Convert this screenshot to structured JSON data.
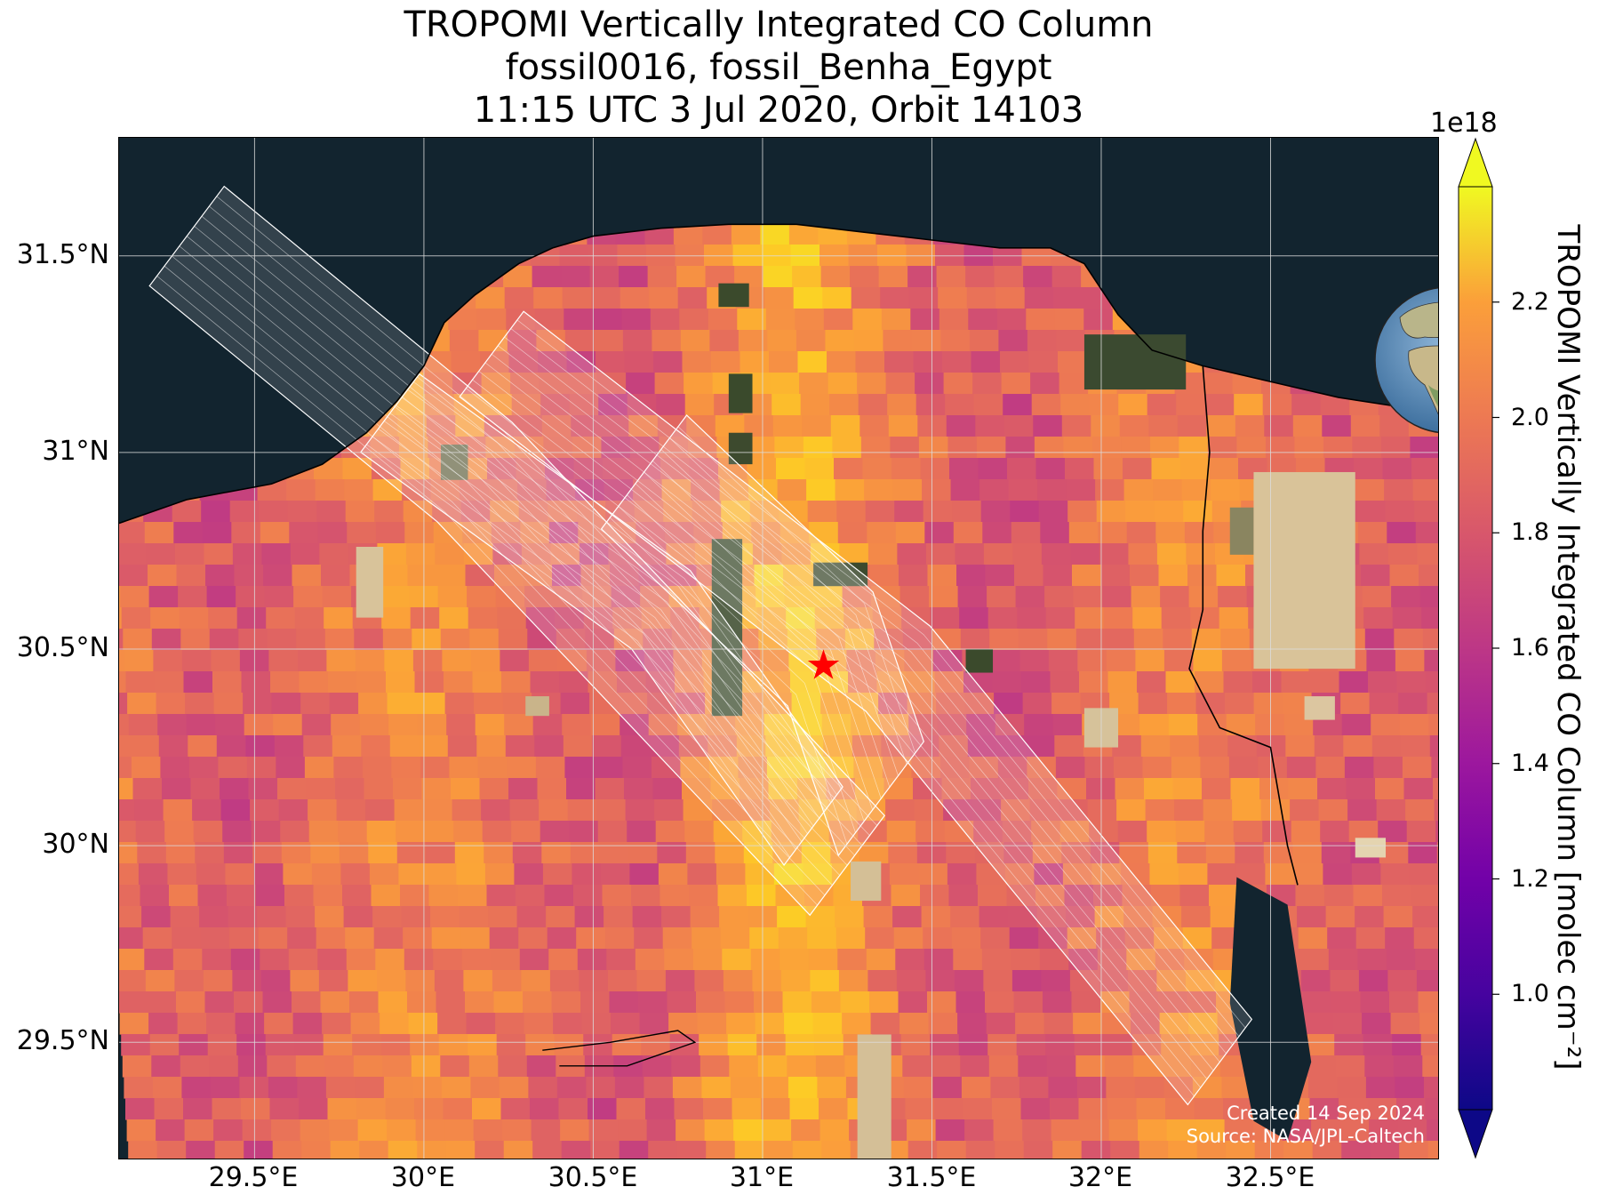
{
  "title": {
    "line1": "TROPOMI Vertically Integrated CO Column",
    "line2": "fossil0016, fossil_Benha_Egypt",
    "line3": "11:15 UTC 3 Jul 2020, Orbit 14103"
  },
  "map": {
    "lon_range": [
      29.1,
      33.0
    ],
    "lat_range": [
      29.2,
      31.8
    ],
    "lat_ticks": [
      {
        "value": 31.5,
        "label": "31.5°N"
      },
      {
        "value": 31.0,
        "label": "31°N"
      },
      {
        "value": 30.5,
        "label": "30.5°N"
      },
      {
        "value": 30.0,
        "label": "30°N"
      },
      {
        "value": 29.5,
        "label": "29.5°N"
      }
    ],
    "lon_ticks": [
      {
        "value": 29.5,
        "label": "29.5°E"
      },
      {
        "value": 30.0,
        "label": "30°E"
      },
      {
        "value": 30.5,
        "label": "30.5°E"
      },
      {
        "value": 31.0,
        "label": "31°E"
      },
      {
        "value": 31.5,
        "label": "31.5°E"
      },
      {
        "value": 32.0,
        "label": "32°E"
      },
      {
        "value": 32.5,
        "label": "32.5°E"
      }
    ],
    "target": {
      "name": "fossil_Benha_Egypt",
      "lon": 31.18,
      "lat": 30.46,
      "marker": "star",
      "color": "#ff0000"
    },
    "sea_color": "#12242f",
    "credit_line1": "Created 14 Sep 2024",
    "credit_line2": "Source: NASA/JPL-Caltech"
  },
  "colorbar": {
    "colormap": "plasma",
    "min": 0.8,
    "max": 2.4,
    "exponent_label": "1e18",
    "ticks": [
      {
        "value": 1.0,
        "label": "1.0"
      },
      {
        "value": 1.2,
        "label": "1.2"
      },
      {
        "value": 1.4,
        "label": "1.4"
      },
      {
        "value": 1.6,
        "label": "1.6"
      },
      {
        "value": 1.8,
        "label": "1.8"
      },
      {
        "value": 2.0,
        "label": "2.0"
      },
      {
        "value": 2.2,
        "label": "2.2"
      }
    ],
    "label": "TROPOMI Vertically Integrated CO Column [molec cm⁻²]",
    "extend": "both"
  },
  "inset": {
    "type": "globe",
    "marker_color": "#ff0000"
  }
}
